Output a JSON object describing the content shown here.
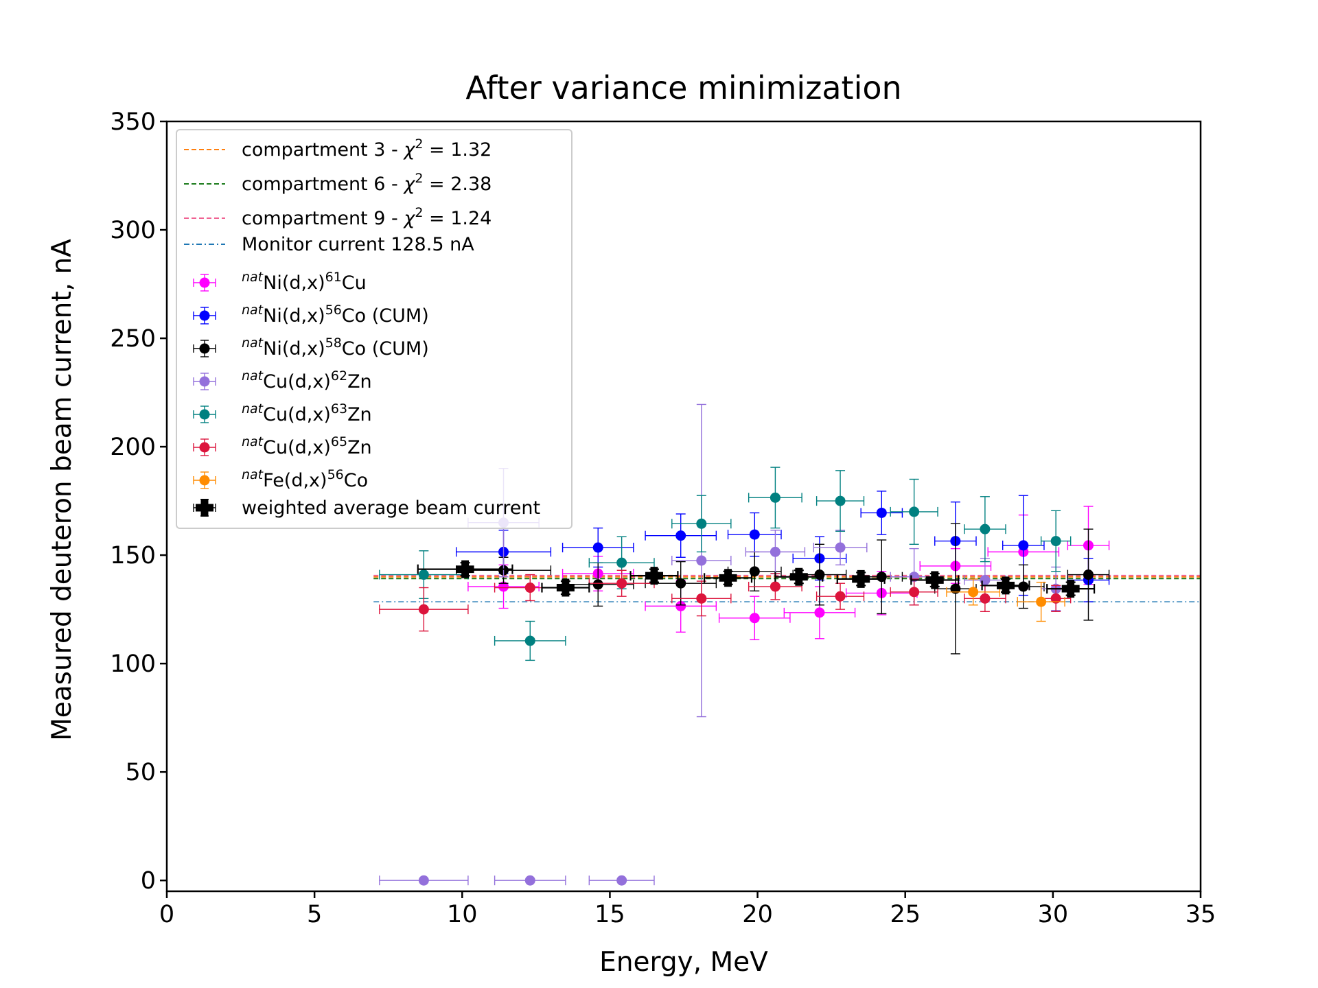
{
  "chart_data": {
    "type": "scatter",
    "title": "After variance minimization",
    "xlabel": "Energy, MeV",
    "ylabel": "Measured deuteron beam current, nA",
    "xlim": [
      0,
      35
    ],
    "ylim": [
      -5,
      350
    ],
    "xticks": [
      0,
      5,
      10,
      15,
      20,
      25,
      30,
      35
    ],
    "yticks": [
      0,
      50,
      100,
      150,
      200,
      250,
      300,
      350
    ],
    "grid": false,
    "legend_position": "top-left",
    "hlines": [
      {
        "label": "compartment 3 - χ² = 1.32",
        "label_main": "compartment 3 - ",
        "label_chi": "χ",
        "label_exp": "2",
        "label_eq": " = 1.32",
        "y": 140.0,
        "xmin": 7,
        "xmax": 35,
        "color": "#ff7f0e",
        "style": "dashed"
      },
      {
        "label": "compartment 6 - χ² = 2.38",
        "label_main": "compartment 6 - ",
        "label_chi": "χ",
        "label_exp": "2",
        "label_eq": " = 2.38",
        "y": 139.2,
        "xmin": 7,
        "xmax": 35,
        "color": "#1a7a1a",
        "style": "dashed"
      },
      {
        "label": "compartment 9 - χ² = 1.24",
        "label_main": "compartment 9 - ",
        "label_chi": "χ",
        "label_exp": "2",
        "label_eq": " = 1.24",
        "y": 140.6,
        "xmin": 7,
        "xmax": 35,
        "color": "#f06292",
        "style": "dashed"
      },
      {
        "label": "Monitor current 128.5 nA",
        "label_main": "Monitor current 128.5 nA",
        "label_chi": "",
        "label_exp": "",
        "label_eq": "",
        "y": 128.5,
        "xmin": 7,
        "xmax": 35,
        "color": "#1f77b4",
        "style": "dashdot"
      }
    ],
    "series": [
      {
        "name": "natNi(d,x)61Cu",
        "sup1": "nat",
        "mid": "Ni(d,x)",
        "sup2": "61",
        "tail": "Cu",
        "color": "#ff00ff",
        "marker": "circle",
        "points": [
          [
            11.4,
            135.5,
            1.2,
            10
          ],
          [
            14.6,
            141.5,
            1.2,
            8
          ],
          [
            17.4,
            126.5,
            1.2,
            12
          ],
          [
            19.9,
            121,
            1.2,
            10
          ],
          [
            22.1,
            123.5,
            1.2,
            12
          ],
          [
            24.2,
            132.5,
            1.2,
            10
          ],
          [
            26.7,
            145,
            1.2,
            8
          ],
          [
            29.0,
            151.5,
            1.2,
            17
          ],
          [
            31.2,
            154.5,
            0.7,
            18
          ]
        ]
      },
      {
        "name": "natNi(d,x)56Co (CUM)",
        "sup1": "nat",
        "mid": "Ni(d,x)",
        "sup2": "56",
        "tail": "Co (CUM)",
        "color": "#0000ff",
        "marker": "circle",
        "points": [
          [
            11.4,
            151.5,
            1.6,
            10
          ],
          [
            14.6,
            153.5,
            1.2,
            9
          ],
          [
            17.4,
            159,
            1.2,
            10
          ],
          [
            19.9,
            159.5,
            0.9,
            10
          ],
          [
            22.1,
            148.5,
            0.9,
            10
          ],
          [
            24.2,
            169.5,
            0.7,
            10
          ],
          [
            26.7,
            156.5,
            0.7,
            18
          ],
          [
            29.0,
            154.5,
            0.7,
            23
          ],
          [
            31.2,
            138.5,
            0.7,
            10
          ]
        ]
      },
      {
        "name": "natNi(d,x)58Co (CUM)",
        "sup1": "nat",
        "mid": "Ni(d,x)",
        "sup2": "58",
        "tail": "Co (CUM)",
        "color": "#000000",
        "marker": "circle",
        "points": [
          [
            11.4,
            143,
            1.6,
            6
          ],
          [
            14.6,
            136.5,
            1.2,
            10
          ],
          [
            17.4,
            137,
            1.2,
            10
          ],
          [
            19.9,
            142.5,
            0.9,
            9
          ],
          [
            22.1,
            141,
            0.9,
            14
          ],
          [
            24.2,
            140,
            0.7,
            17
          ],
          [
            26.7,
            134.5,
            0.7,
            30
          ],
          [
            29.0,
            135.5,
            0.7,
            10
          ],
          [
            31.2,
            141,
            0.7,
            21
          ]
        ]
      },
      {
        "name": "natCu(d,x)62Zn",
        "sup1": "nat",
        "mid": "Cu(d,x)",
        "sup2": "62",
        "tail": "Zn",
        "color": "#9370db",
        "marker": "circle",
        "points": [
          [
            8.7,
            0,
            1.5,
            0
          ],
          [
            12.3,
            0,
            1.2,
            0
          ],
          [
            15.4,
            0,
            1.1,
            0
          ],
          [
            11.4,
            165,
            1.2,
            25
          ],
          [
            18.1,
            147.5,
            1.0,
            72
          ],
          [
            20.6,
            151.5,
            1.0,
            10
          ],
          [
            22.8,
            153.5,
            0.9,
            8
          ],
          [
            25.3,
            140,
            0.8,
            13
          ],
          [
            27.7,
            138.5,
            0.7,
            10
          ],
          [
            30.1,
            134.5,
            0.5,
            10
          ]
        ]
      },
      {
        "name": "natCu(d,x)63Zn",
        "sup1": "nat",
        "mid": "Cu(d,x)",
        "sup2": "63",
        "tail": "Zn",
        "color": "#008080",
        "marker": "circle",
        "points": [
          [
            8.7,
            141,
            1.5,
            11
          ],
          [
            12.3,
            110.5,
            1.2,
            9
          ],
          [
            15.4,
            146.5,
            1.1,
            12
          ],
          [
            18.1,
            164.5,
            1.0,
            13
          ],
          [
            20.6,
            176.5,
            0.9,
            14
          ],
          [
            22.8,
            175,
            0.8,
            14
          ],
          [
            25.3,
            170,
            0.8,
            15
          ],
          [
            27.7,
            162,
            0.7,
            15
          ],
          [
            30.1,
            156.5,
            0.5,
            14
          ]
        ]
      },
      {
        "name": "natCu(d,x)65Zn",
        "sup1": "nat",
        "mid": "Cu(d,x)",
        "sup2": "65",
        "tail": "Zn",
        "color": "#dc143c",
        "marker": "circle",
        "points": [
          [
            8.7,
            125,
            1.5,
            10
          ],
          [
            12.3,
            135,
            1.2,
            6
          ],
          [
            15.4,
            137,
            1.1,
            6
          ],
          [
            18.1,
            130,
            1.0,
            8
          ],
          [
            20.6,
            135.5,
            0.9,
            6
          ],
          [
            22.8,
            131,
            0.8,
            6
          ],
          [
            25.3,
            133,
            0.8,
            6
          ],
          [
            27.7,
            130,
            0.7,
            6
          ],
          [
            30.1,
            130,
            0.5,
            6
          ]
        ]
      },
      {
        "name": "natFe(d,x)56Co",
        "sup1": "nat",
        "mid": "Fe(d,x)",
        "sup2": "56",
        "tail": "Co",
        "color": "#ff8c00",
        "marker": "circle",
        "points": [
          [
            27.3,
            133,
            0.9,
            6
          ],
          [
            29.6,
            128.5,
            0.8,
            9
          ]
        ]
      },
      {
        "name": "weighted average beam current",
        "sup1": "",
        "mid": "weighted average beam current",
        "sup2": "",
        "tail": "",
        "color": "#000000",
        "marker": "plus",
        "points": [
          [
            10.1,
            143.5,
            1.6,
            3
          ],
          [
            13.5,
            135,
            0.8,
            3
          ],
          [
            16.5,
            140.5,
            0.8,
            3
          ],
          [
            19.0,
            139.5,
            0.8,
            3
          ],
          [
            21.4,
            140,
            0.8,
            3
          ],
          [
            23.5,
            139,
            0.8,
            3
          ],
          [
            26.0,
            138.5,
            0.8,
            3
          ],
          [
            28.4,
            136,
            0.8,
            3
          ],
          [
            30.6,
            134.5,
            0.8,
            3
          ]
        ]
      }
    ]
  }
}
